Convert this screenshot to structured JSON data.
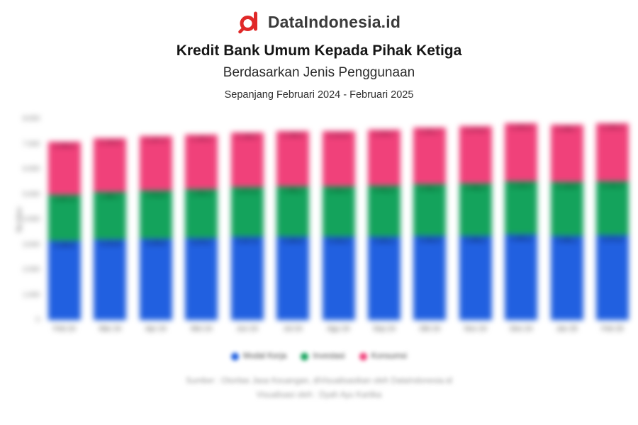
{
  "brand": {
    "name": "DataIndonesia.id"
  },
  "header": {
    "title": "Kredit Bank Umum Kepada Pihak Ketiga",
    "subtitle": "Berdasarkan Jenis Penggunaan",
    "period": "Sepanjang Februari 2024 - Februari 2025"
  },
  "chart_data": {
    "type": "bar",
    "stacked": true,
    "title": "Kredit Bank Umum Kepada Pihak Ketiga Berdasarkan Jenis Penggunaan, Februari 2024 - Februari 2025",
    "xlabel": "",
    "ylabel": "Rp triliun",
    "ylim": [
      0,
      8000
    ],
    "ytick_step": 1000,
    "grid": false,
    "legend_position": "bottom",
    "categories": [
      "Feb 24",
      "Mar 24",
      "Apr 24",
      "Mei 24",
      "Jun 24",
      "Jul 24",
      "Agu 24",
      "Sep 24",
      "Okt 24",
      "Nov 24",
      "Des 24",
      "Jan 25",
      "Feb 25"
    ],
    "series": [
      {
        "name": "Modal Kerja",
        "color": "#2160e0",
        "label_color": "#0a2c6e",
        "values": [
          3160.6,
          3214.8,
          3235.9,
          3270.7,
          3317.6,
          3325.9,
          3310.3,
          3322.1,
          3342.5,
          3359.2,
          3405.2,
          3365.1,
          3374.4
        ]
      },
      {
        "name": "Investasi",
        "color": "#14a35c",
        "label_color": "#065f2e",
        "values": [
          1837.6,
          1889.7,
          1916.8,
          1940.3,
          1971.6,
          1996.1,
          2004.3,
          2022.2,
          2062.1,
          2086.9,
          2126.3,
          2128.8,
          2141.9
        ]
      },
      {
        "name": "Konsumsi",
        "color": "#f0417a",
        "label_color": "#8e1d47",
        "values": [
          2096.9,
          2140.5,
          2157.2,
          2165.2,
          2188.5,
          2198.5,
          2213.9,
          2234.7,
          2251.7,
          2270.9,
          2295.9,
          2288.7,
          2309.3
        ]
      }
    ]
  },
  "footer": {
    "source_line1": "Sumber : Otoritas Jasa Keuangan, diVisualisasikan oleh DataIndonesia.id",
    "source_line2": "Visualisasi oleh : Dyah Ayu Kartika"
  }
}
